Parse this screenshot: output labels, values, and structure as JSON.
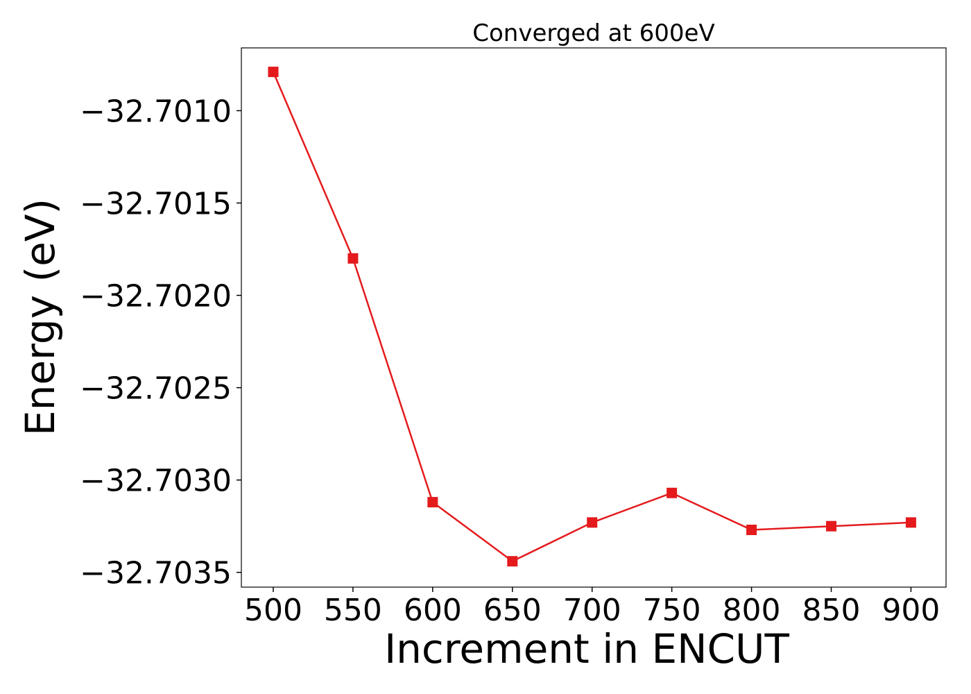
{
  "chart_data": {
    "type": "line",
    "title": "Converged at 600eV",
    "xlabel": "Increment in ENCUT",
    "ylabel": "Energy (eV)",
    "x": [
      500,
      550,
      600,
      650,
      700,
      750,
      800,
      850,
      900
    ],
    "series": [
      {
        "values": [
          -32.70079,
          -32.7018,
          -32.70312,
          -32.70344,
          -32.70323,
          -32.70307,
          -32.70327,
          -32.70325,
          -32.70323
        ],
        "color": "#e41a1c",
        "marker": "square"
      }
    ],
    "xticks": [
      500,
      550,
      600,
      650,
      700,
      750,
      800,
      850,
      900
    ],
    "xtick_labels": [
      "500",
      "550",
      "600",
      "650",
      "700",
      "750",
      "800",
      "850",
      "900"
    ],
    "yticks": [
      -32.701,
      -32.7015,
      -32.702,
      -32.7025,
      -32.703,
      -32.7035
    ],
    "ytick_labels": [
      "−32.7010",
      "−32.7015",
      "−32.7020",
      "−32.7025",
      "−32.7030",
      "−32.7035"
    ],
    "xlim": [
      480,
      922
    ],
    "ylim": [
      -32.70358,
      -32.70066
    ],
    "grid": false,
    "legend": "none"
  }
}
